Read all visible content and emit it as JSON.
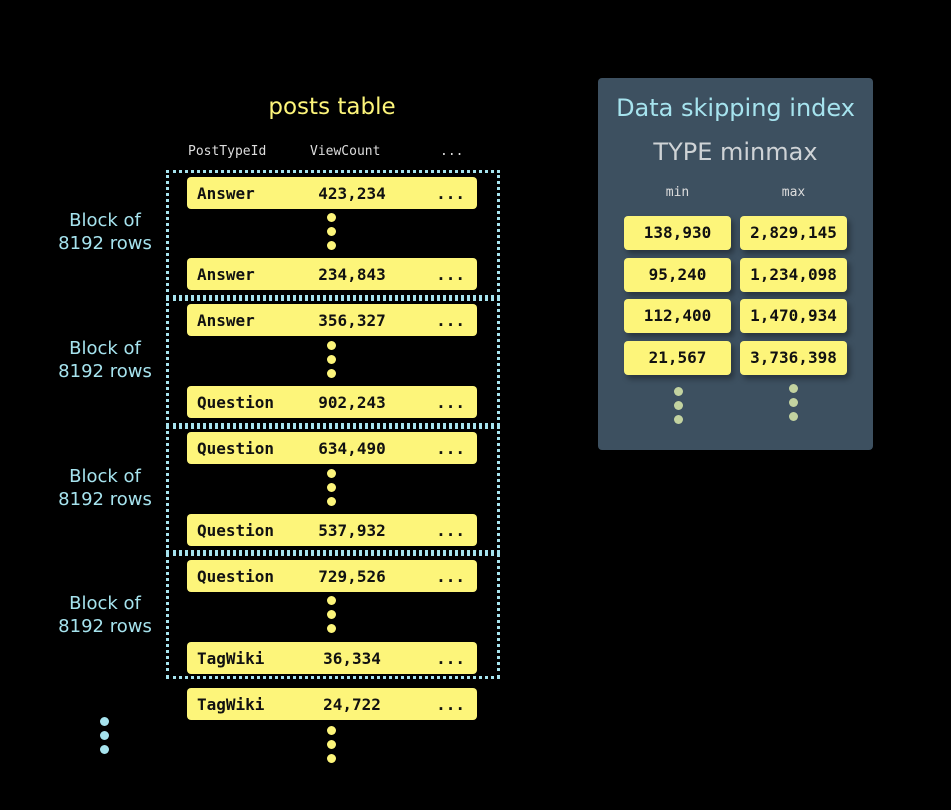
{
  "posts_table": {
    "title": "posts table",
    "columns": [
      "PostTypeId",
      "ViewCount",
      "..."
    ],
    "block_label": [
      "Block of",
      "8192 rows"
    ],
    "rows": [
      {
        "type": "Answer",
        "views": "423,234",
        "more": "..."
      },
      {
        "type": "Answer",
        "views": "234,843",
        "more": "..."
      },
      {
        "type": "Answer",
        "views": "356,327",
        "more": "..."
      },
      {
        "type": "Question",
        "views": "902,243",
        "more": "..."
      },
      {
        "type": "Question",
        "views": "634,490",
        "more": "..."
      },
      {
        "type": "Question",
        "views": "537,932",
        "more": "..."
      },
      {
        "type": "Question",
        "views": "729,526",
        "more": "..."
      },
      {
        "type": "TagWiki",
        "views": "36,334",
        "more": "..."
      },
      {
        "type": "TagWiki",
        "views": "24,722",
        "more": "..."
      }
    ]
  },
  "index": {
    "title": "Data skipping index",
    "subtitle": "TYPE minmax",
    "min_label": "min",
    "max_label": "max",
    "entries": [
      {
        "min": "138,930",
        "max": "2,829,145"
      },
      {
        "min": "95,240",
        "max": "1,234,098"
      },
      {
        "min": "112,400",
        "max": "1,470,934"
      },
      {
        "min": "21,567",
        "max": "3,736,398"
      }
    ]
  },
  "colors": {
    "row": "#fdf57a",
    "block_border": "#a6e3ee",
    "panel": "#3d5060"
  }
}
